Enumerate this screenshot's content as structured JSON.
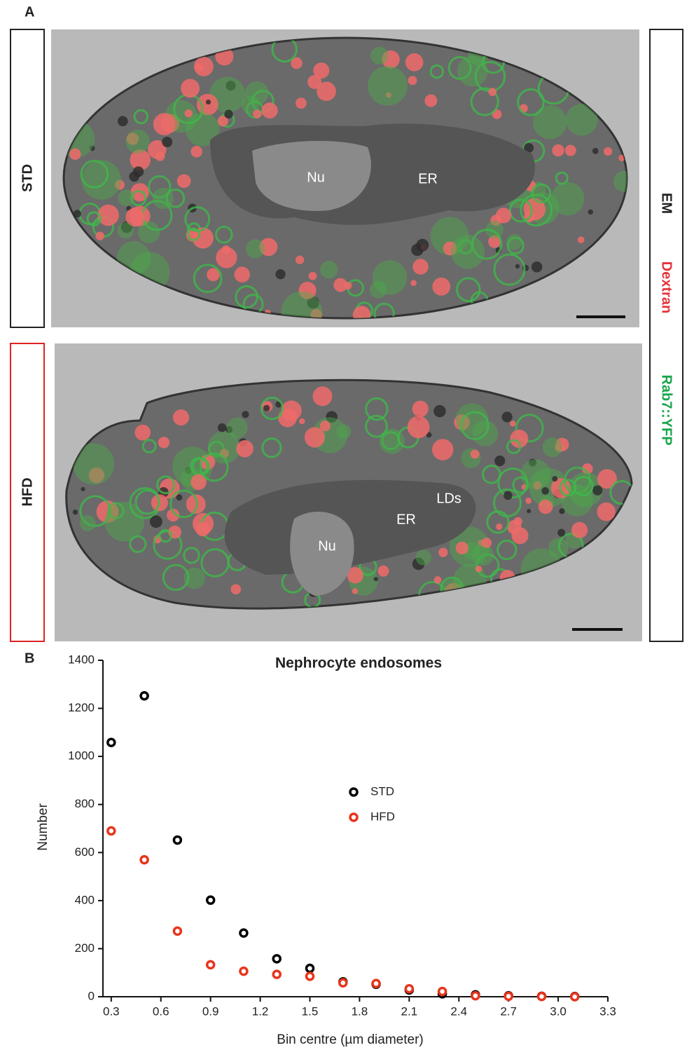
{
  "panel_a": {
    "label": "A",
    "rows": [
      {
        "label": "STD",
        "annotations": [
          "Nu",
          "ER"
        ]
      },
      {
        "label": "HFD",
        "annotations": [
          "Nu",
          "ER",
          "LDs"
        ]
      }
    ],
    "channels": [
      "EM",
      "Dextran",
      "Rab7::YFP"
    ]
  },
  "panel_b": {
    "label": "B"
  },
  "chart_data": {
    "type": "scatter",
    "title": "Nephrocyte endosomes",
    "x_label": "Bin centre (µm diameter)",
    "y_label": "Number",
    "x": [
      0.3,
      0.5,
      0.7,
      0.9,
      1.1,
      1.3,
      1.5,
      1.7,
      1.9,
      2.1,
      2.3,
      2.5,
      2.7,
      2.9,
      3.1
    ],
    "series": [
      {
        "name": "STD",
        "color": "#000000",
        "values": [
          1058,
          1252,
          652,
          402,
          265,
          158,
          118,
          62,
          52,
          28,
          12,
          8,
          4,
          2,
          1
        ]
      },
      {
        "name": "HFD",
        "color": "#e8341c",
        "values": [
          690,
          570,
          273,
          133,
          106,
          93,
          85,
          58,
          55,
          33,
          22,
          4,
          2,
          1,
          0
        ]
      }
    ],
    "xlim": [
      0.25,
      3.3
    ],
    "xticks": [
      0.3,
      0.6,
      0.9,
      1.2,
      1.5,
      1.8,
      2.1,
      2.4,
      2.7,
      {
        "value": 3,
        "label": "3.0"
      },
      3.3
    ],
    "ylim": [
      0,
      1400
    ],
    "yticks": [
      0,
      200,
      400,
      600,
      800,
      1000,
      1200,
      1400
    ],
    "grid": false,
    "legend": "center"
  }
}
